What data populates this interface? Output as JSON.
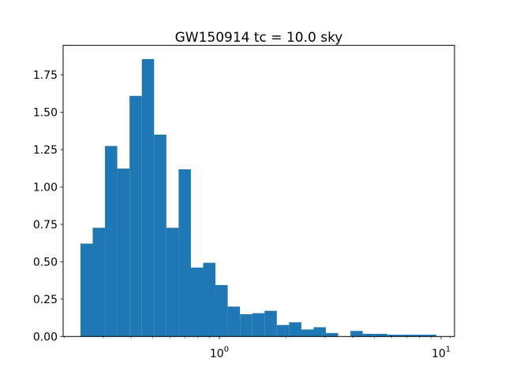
{
  "chart_data": {
    "type": "histogram",
    "title": "GW150914 tc = 10.0 sky",
    "xlabel": "",
    "ylabel": "",
    "xscale": "log",
    "xlim": [
      0.1975,
      11.49
    ],
    "ylim": [
      0,
      1.947
    ],
    "grid": false,
    "legend": false,
    "bar_color": "#1f77b4",
    "text_color": "#000000",
    "spine_color": "#000000",
    "background_color": "#ffffff",
    "bin_edges": [
      0.2364,
      0.2685,
      0.305,
      0.3465,
      0.3936,
      0.4471,
      0.5078,
      0.5768,
      0.6552,
      0.7443,
      0.8454,
      0.9603,
      1.0908,
      1.239,
      1.4074,
      1.5987,
      1.8159,
      2.0627,
      2.343,
      2.6614,
      3.0231,
      3.4339,
      3.9006,
      4.4307,
      5.0328,
      5.7168,
      6.4937,
      7.3762,
      8.3787,
      9.5173
    ],
    "densities": [
      0.621,
      0.727,
      1.274,
      1.123,
      1.609,
      1.855,
      1.35,
      0.727,
      1.118,
      0.461,
      0.493,
      0.344,
      0.2,
      0.149,
      0.156,
      0.172,
      0.077,
      0.095,
      0.047,
      0.062,
      0.023,
      0,
      0.037,
      0.018,
      0.018,
      0.012,
      0.012,
      0.012,
      0.012
    ],
    "yticks": [
      {
        "value": 0.0,
        "label": "0.00"
      },
      {
        "value": 0.25,
        "label": "0.25"
      },
      {
        "value": 0.5,
        "label": "0.50"
      },
      {
        "value": 0.75,
        "label": "0.75"
      },
      {
        "value": 1.0,
        "label": "1.00"
      },
      {
        "value": 1.25,
        "label": "1.25"
      },
      {
        "value": 1.5,
        "label": "1.50"
      },
      {
        "value": 1.75,
        "label": "1.75"
      }
    ],
    "xticks_major": [
      {
        "value": 1,
        "base": "10",
        "exp": "0"
      },
      {
        "value": 10,
        "base": "10",
        "exp": "1"
      }
    ],
    "xticks_minor": [
      0.2,
      0.3,
      0.4,
      0.5,
      0.6,
      0.7,
      0.8,
      0.9,
      2,
      3,
      4,
      5,
      6,
      7,
      8,
      9,
      11
    ]
  }
}
